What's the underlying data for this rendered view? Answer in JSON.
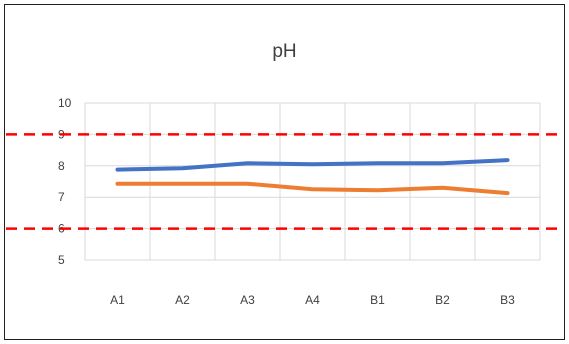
{
  "chart_data": {
    "type": "line",
    "title": "pH",
    "xlabel": "",
    "ylabel": "",
    "categories": [
      "A1",
      "A2",
      "A3",
      "A4",
      "B1",
      "B2",
      "B3"
    ],
    "ylim": [
      5,
      10
    ],
    "yticks": [
      5,
      6,
      7,
      8,
      9,
      10
    ],
    "grid": true,
    "legend": "none",
    "series": [
      {
        "color": "#4472c4",
        "values": [
          7.88,
          7.92,
          8.08,
          8.05,
          8.08,
          8.08,
          8.18
        ]
      },
      {
        "color": "#ed7d31",
        "values": [
          7.43,
          7.43,
          7.43,
          7.25,
          7.22,
          7.3,
          7.13
        ]
      }
    ],
    "reference_lines": [
      {
        "value": 9,
        "color": "#ff0000",
        "style": "dashed"
      },
      {
        "value": 6,
        "color": "#ff0000",
        "style": "dashed"
      }
    ]
  }
}
